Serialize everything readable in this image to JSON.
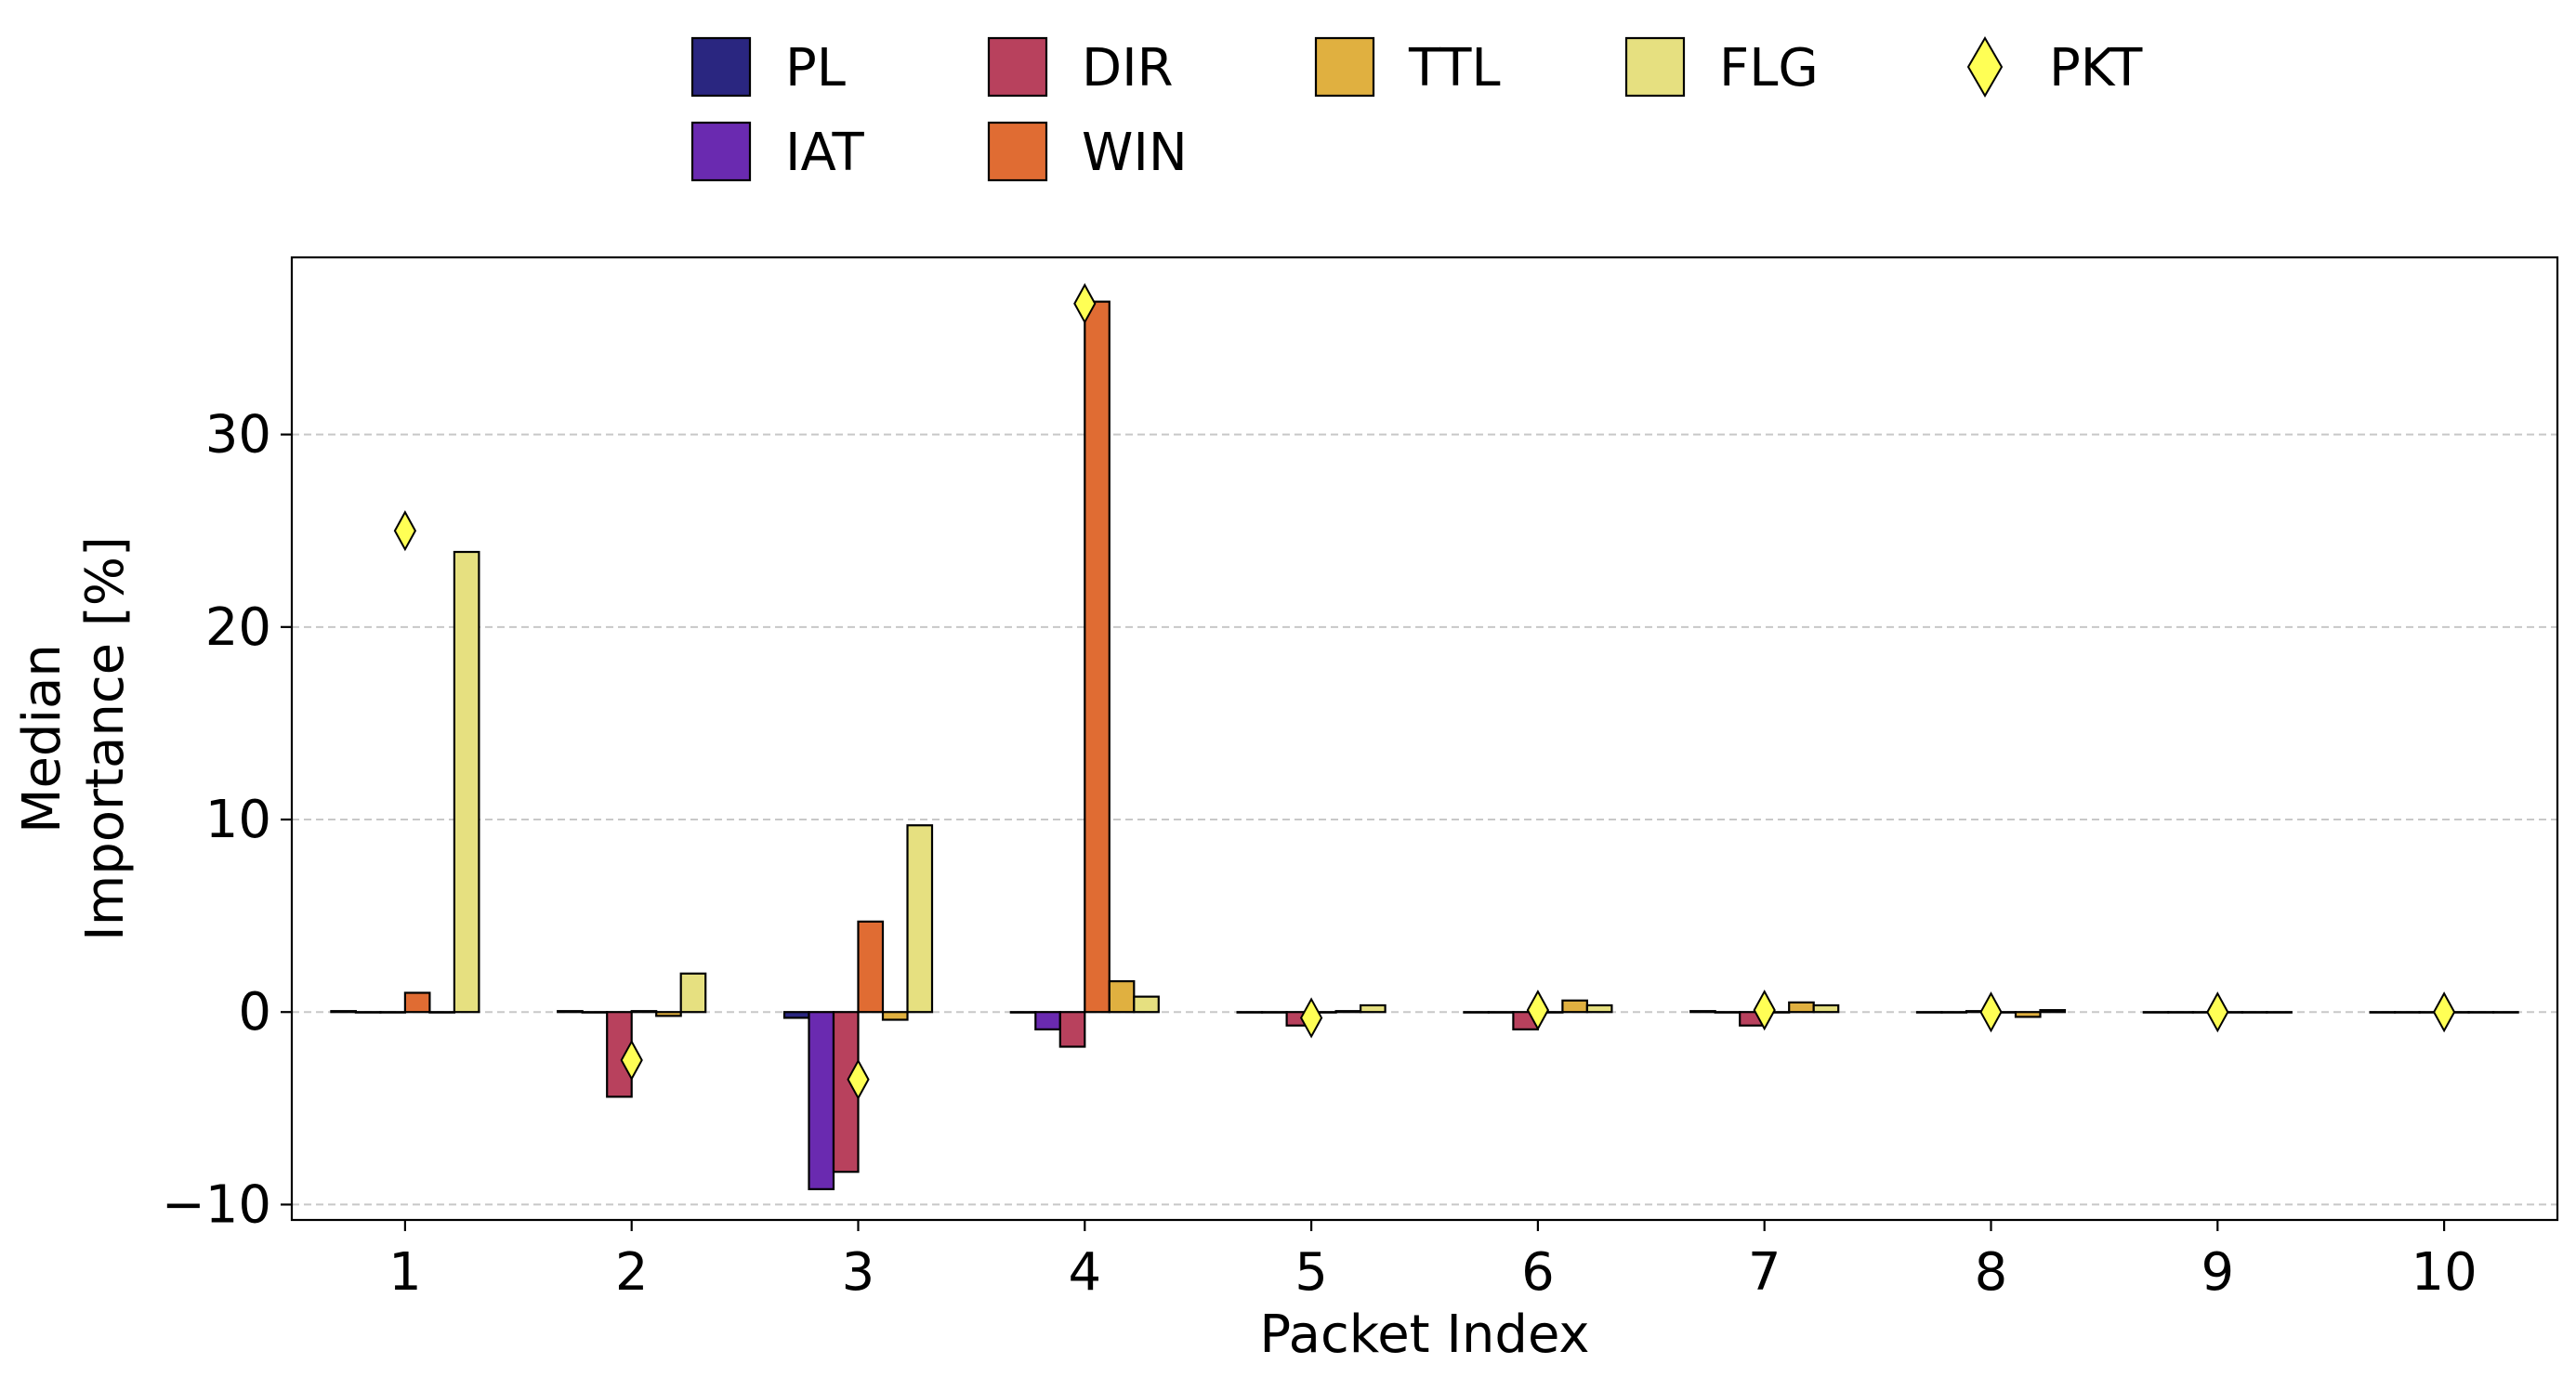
{
  "chart_data": {
    "type": "bar",
    "xlabel": "Packet Index",
    "ylabel_lines": [
      "Median",
      "Importance [%]"
    ],
    "categories": [
      "1",
      "2",
      "3",
      "4",
      "5",
      "6",
      "7",
      "8",
      "9",
      "10"
    ],
    "ylim": [
      -10.8,
      39.2
    ],
    "yticks": [
      -10,
      0,
      10,
      20,
      30
    ],
    "ytick_labels": [
      "−10",
      "0",
      "10",
      "20",
      "30"
    ],
    "grid": "y-dashed",
    "legend_position": "top-center",
    "series": [
      {
        "name": "PL",
        "color": "#2a2680",
        "values": [
          0.05,
          0.05,
          -0.3,
          0.0,
          0.0,
          0.0,
          0.05,
          0.0,
          0.0,
          0.0
        ]
      },
      {
        "name": "IAT",
        "color": "#6a2ab0",
        "values": [
          0.0,
          0.0,
          -9.2,
          -0.9,
          0.0,
          0.0,
          0.0,
          0.0,
          0.0,
          0.0
        ]
      },
      {
        "name": "DIR",
        "color": "#b8415d",
        "values": [
          0.0,
          -4.4,
          -8.3,
          -1.8,
          -0.7,
          -0.9,
          -0.7,
          0.05,
          0.0,
          0.0
        ]
      },
      {
        "name": "WIN",
        "color": "#e06c33",
        "values": [
          1.0,
          0.05,
          4.7,
          36.9,
          0.0,
          0.0,
          0.0,
          0.0,
          0.0,
          0.0
        ]
      },
      {
        "name": "TTL",
        "color": "#e0b040",
        "values": [
          0.0,
          -0.2,
          -0.4,
          1.6,
          0.05,
          0.6,
          0.5,
          -0.25,
          0.0,
          0.0
        ]
      },
      {
        "name": "FLG",
        "color": "#e6e080",
        "values": [
          23.9,
          2.0,
          9.7,
          0.8,
          0.35,
          0.35,
          0.35,
          0.1,
          0.0,
          0.0
        ]
      }
    ],
    "markers": {
      "name": "PKT",
      "shape": "diamond",
      "color": "#ffff55",
      "values": [
        25.0,
        -2.5,
        -3.5,
        36.8,
        -0.3,
        0.1,
        0.1,
        0.0,
        0.0,
        0.0
      ]
    }
  }
}
